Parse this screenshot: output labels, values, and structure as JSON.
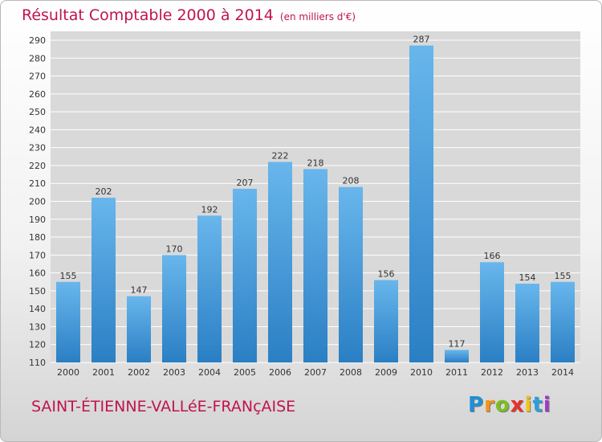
{
  "title": "Résultat Comptable 2000 à 2014",
  "subtitle": "(en milliers d'€)",
  "commune": "SAINT-ÉTIENNE-VALLéE-FRANçAISE",
  "logo": {
    "letters": [
      "P",
      "r",
      "o",
      "x",
      "i",
      "t",
      "i"
    ],
    "colors": [
      "#1f8fd6",
      "#f09318",
      "#7cbf1e",
      "#e8302a",
      "#f5c20e",
      "#2ba0dd",
      "#9b3dc4"
    ]
  },
  "colors": {
    "accent": "#c0144d",
    "bar_light": "#68b6ec",
    "bar_dark": "#2a7fc4",
    "grid": "#ffffff",
    "plot_bg": "#d9d9d9"
  },
  "chart_data": {
    "type": "bar",
    "categories": [
      "2000",
      "2001",
      "2002",
      "2003",
      "2004",
      "2005",
      "2006",
      "2007",
      "2008",
      "2009",
      "2010",
      "2011",
      "2012",
      "2013",
      "2014"
    ],
    "values": [
      155,
      202,
      147,
      170,
      192,
      207,
      222,
      218,
      208,
      156,
      287,
      117,
      166,
      154,
      155
    ],
    "data_labels": [
      "155",
      "202",
      "147",
      "170",
      "192",
      "207",
      "222",
      "218",
      "208",
      "156",
      "287",
      "117",
      "166",
      "154",
      "155"
    ],
    "yticks": [
      "110",
      "120",
      "130",
      "140",
      "150",
      "160",
      "170",
      "180",
      "190",
      "200",
      "210",
      "220",
      "230",
      "240",
      "250",
      "260",
      "270",
      "280",
      "290"
    ],
    "ylim": [
      110,
      290
    ],
    "grid": true,
    "legend": false
  }
}
